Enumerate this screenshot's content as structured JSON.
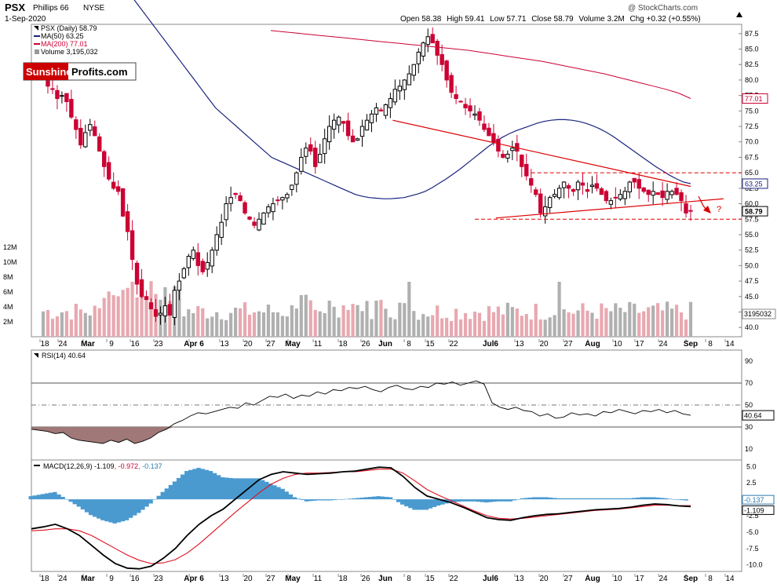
{
  "header": {
    "symbol": "PSX",
    "company": "Phillips 66",
    "exchange": "NYSE",
    "date": "1-Sep-2020",
    "watermark": "@ StockCharts.com",
    "open_label": "Open",
    "open": "58.38",
    "high_label": "High",
    "high": "59.41",
    "low_label": "Low",
    "low": "57.71",
    "close_label": "Close",
    "close": "58.79",
    "volume_label": "Volume",
    "volume": "3.2M",
    "chg_label": "Chg",
    "chg": "+0.32 (+0.55%)"
  },
  "logo": {
    "part1": "Sunshine",
    "part2": "Profits.com"
  },
  "colors": {
    "up": "#000000",
    "down": "#cc0033",
    "ma50": "#1a237e",
    "ma200": "#cc0033",
    "vol_up": "#b0b0b0",
    "vol_down": "#e8a8b0",
    "annotation": "#dd0000",
    "hist": "#4a9ad0",
    "rsi_fill": "#a07878"
  },
  "chart_data": [
    {
      "type": "candlestick",
      "title": "PSX (Daily) 58.79",
      "legend": [
        {
          "name": "PSX (Daily)",
          "value": "58.79"
        },
        {
          "name": "MA(50)",
          "value": "63.25"
        },
        {
          "name": "MA(200)",
          "value": "77.01"
        },
        {
          "name": "Volume",
          "value": "3,195,032"
        }
      ],
      "y_ticks": [
        "87.5",
        "85.0",
        "82.5",
        "80.0",
        "77.5",
        "75.0",
        "72.5",
        "70.0",
        "67.5",
        "65.0",
        "62.5",
        "60.0",
        "57.5",
        "55.0",
        "52.5",
        "50.0",
        "47.5",
        "45.0",
        "42.5",
        "40.0"
      ],
      "ylim": [
        38.5,
        89
      ],
      "value_tags": [
        "77.01",
        "63.25",
        "58.79"
      ],
      "volume_ticks": [
        "12M",
        "10M",
        "8M",
        "6M",
        "4M",
        "2M"
      ],
      "volume_tag": "3195032",
      "annotation_text": "?",
      "candles_close": [
        80.5,
        79.0,
        78.5,
        77.0,
        77.5,
        76.5,
        74.0,
        72.0,
        69.5,
        71.5,
        72.8,
        71.0,
        68.5,
        66.0,
        64.0,
        62.5,
        62.0,
        58.0,
        55.5,
        51.0,
        47.0,
        45.0,
        44.5,
        43.0,
        41.8,
        42.3,
        43.5,
        42.0,
        46.0,
        47.5,
        49.5,
        51.5,
        52.5,
        50.0,
        49.0,
        50.5,
        52.5,
        55.0,
        57.0,
        60.0,
        61.0,
        61.5,
        60.5,
        58.5,
        57.5,
        56.5,
        57.5,
        58.5,
        59.5,
        60.0,
        60.5,
        61.0,
        61.5,
        63.0,
        65.0,
        67.5,
        69.0,
        68.5,
        66.0,
        68.0,
        70.5,
        72.5,
        73.5,
        74.0,
        73.0,
        71.0,
        70.0,
        70.5,
        72.5,
        73.5,
        74.5,
        75.5,
        75.0,
        76.0,
        77.0,
        78.5,
        79.0,
        80.0,
        81.0,
        82.5,
        84.5,
        86.0,
        87.0,
        86.0,
        84.0,
        82.5,
        80.0,
        78.0,
        77.0,
        76.5,
        75.5,
        75.0,
        74.5,
        73.5,
        72.0,
        71.0,
        70.0,
        68.5,
        67.5,
        68.0,
        69.0,
        68.5,
        66.0,
        64.5,
        63.0,
        61.5,
        58.5,
        59.5,
        61.0,
        61.5,
        62.5,
        63.5,
        62.5,
        62.0,
        63.5,
        63.0,
        62.0,
        63.0,
        62.5,
        61.5,
        60.5,
        60.5,
        61.0,
        61.5,
        62.0,
        63.5,
        63.5,
        62.5,
        62.0,
        61.5,
        62.0,
        61.5,
        61.0,
        62.0,
        62.0,
        61.5,
        60.5,
        58.5,
        58.79
      ],
      "ma50": [
        96.5,
        95.0,
        93.5,
        92.0,
        90.5,
        89.0,
        87.5,
        86.0,
        84.5,
        83.0,
        81.5,
        80.0,
        78.5,
        77.0,
        75.5,
        74.5,
        73.5,
        72.5,
        71.5,
        70.5,
        69.5,
        68.5,
        67.5,
        67.0,
        66.5,
        66.0,
        65.5,
        65.0,
        64.5,
        64.0,
        63.5,
        63.0,
        62.5,
        62.0,
        61.5,
        61.2,
        61.0,
        60.9,
        60.8,
        60.8,
        60.9,
        61.0,
        61.3,
        61.6,
        62.0,
        62.6,
        63.3,
        64.0,
        64.8,
        65.6,
        66.5,
        67.4,
        68.3,
        69.2,
        70.0,
        70.7,
        71.3,
        71.8,
        72.2,
        72.6,
        73.0,
        73.3,
        73.5,
        73.6,
        73.6,
        73.5,
        73.3,
        73.0,
        72.6,
        72.1,
        71.5,
        70.8,
        70.0,
        69.2,
        68.4,
        67.6,
        66.8,
        66.0,
        65.3,
        64.6,
        64.0,
        63.5,
        63.25
      ],
      "ma200": [
        88.0,
        87.8,
        87.6,
        87.4,
        87.2,
        87.0,
        86.8,
        86.6,
        86.4,
        86.2,
        86.0,
        85.8,
        85.6,
        85.4,
        85.2,
        85.0,
        84.8,
        84.5,
        84.2,
        83.9,
        83.6,
        83.3,
        83.0,
        82.6,
        82.2,
        81.8,
        81.4,
        81.0,
        80.5,
        80.0,
        79.5,
        79.0,
        78.5,
        77.9,
        77.01
      ],
      "trend_lines": [
        {
          "kind": "resistance",
          "from": [
            74.5,
            73.5
          ],
          "to": [
            138,
            62.8
          ]
        },
        {
          "kind": "support",
          "from": [
            96.5,
            57.7
          ],
          "to": [
            145,
            60.8
          ]
        },
        {
          "kind": "range_top",
          "value": 65.0
        },
        {
          "kind": "range_bottom",
          "value": 57.5
        }
      ]
    },
    {
      "type": "line",
      "title": "RSI(14) 40.64",
      "legend": [
        {
          "name": "RSI(14)",
          "value": "40.64"
        }
      ],
      "y_ticks": [
        "90",
        "70",
        "50",
        "30",
        "10"
      ],
      "ylim": [
        0,
        100
      ],
      "value_tag": "40.64",
      "rsi": [
        28,
        27,
        26,
        24,
        25,
        20,
        18,
        17,
        16,
        15,
        18,
        16,
        19,
        15,
        17,
        20,
        25,
        28,
        33,
        36,
        40,
        43,
        42,
        44,
        46,
        48,
        47,
        52,
        50,
        54,
        58,
        57,
        60,
        56,
        59,
        58,
        62,
        60,
        64,
        63,
        66,
        65,
        67,
        64,
        62,
        66,
        68,
        65,
        64,
        67,
        66,
        70,
        69,
        71,
        68,
        70,
        72,
        69,
        52,
        48,
        46,
        48,
        45,
        44,
        40,
        42,
        38,
        39,
        43,
        41,
        42,
        40,
        44,
        43,
        46,
        44,
        42,
        45,
        44,
        46,
        43,
        45,
        42,
        40.64
      ]
    },
    {
      "type": "line",
      "title": "MACD(12,26,9)",
      "legend": [
        {
          "name": "MACD(12,26,9)",
          "value": "-1.109"
        },
        {
          "name": "signal",
          "value": "-0.972"
        },
        {
          "name": "histogram",
          "value": "-0.137"
        }
      ],
      "y_ticks": [
        "5.0",
        "2.5",
        "-2.5",
        "-5.0",
        "-7.5",
        "-10.0"
      ],
      "ylim": [
        -11,
        6
      ],
      "value_tags": [
        "-0.137",
        "-1.109"
      ],
      "macd": [
        -4.5,
        -4.2,
        -3.8,
        -4.5,
        -5.5,
        -7.0,
        -8.5,
        -9.8,
        -10.5,
        -10.6,
        -10.2,
        -9.0,
        -7.5,
        -5.5,
        -3.8,
        -2.5,
        -1.5,
        0.0,
        1.5,
        3.0,
        3.8,
        4.2,
        4.0,
        3.8,
        3.9,
        4.0,
        4.2,
        4.3,
        4.6,
        4.9,
        4.8,
        3.5,
        1.8,
        0.5,
        0.0,
        -0.5,
        -1.2,
        -2.0,
        -2.8,
        -3.1,
        -3.2,
        -2.8,
        -2.5,
        -2.3,
        -2.2,
        -2.0,
        -1.8,
        -1.6,
        -1.5,
        -1.4,
        -1.2,
        -0.9,
        -0.7,
        -0.8,
        -1.0,
        -1.109
      ],
      "signal": [
        -4.8,
        -4.7,
        -4.5,
        -4.5,
        -4.8,
        -5.5,
        -6.5,
        -7.5,
        -8.5,
        -9.3,
        -9.8,
        -9.7,
        -9.2,
        -8.2,
        -6.8,
        -5.2,
        -3.6,
        -2.0,
        -0.5,
        1.0,
        2.3,
        3.2,
        3.8,
        4.0,
        4.0,
        4.1,
        4.2,
        4.2,
        4.4,
        4.6,
        4.6,
        4.0,
        2.8,
        1.5,
        0.6,
        -0.2,
        -1.0,
        -1.8,
        -2.5,
        -2.9,
        -3.0,
        -2.9,
        -2.7,
        -2.5,
        -2.3,
        -2.1,
        -1.9,
        -1.7,
        -1.6,
        -1.5,
        -1.3,
        -1.1,
        -0.9,
        -0.9,
        -0.95,
        -0.972
      ]
    }
  ],
  "x_axis": {
    "labels": [
      "18",
      "24",
      "Mar",
      "9",
      "16",
      "23",
      "Apr 6",
      "13",
      "20",
      "27",
      "May",
      "11",
      "18",
      "26",
      "Jun",
      "8",
      "15",
      "22",
      "Jul6",
      "13",
      "20",
      "27",
      "Aug",
      "10",
      "17",
      "24",
      "Sep",
      "8",
      "14"
    ],
    "bold": [
      "Mar",
      "Apr 6",
      "May",
      "Jun",
      "Jul6",
      "Aug",
      "Sep"
    ]
  }
}
